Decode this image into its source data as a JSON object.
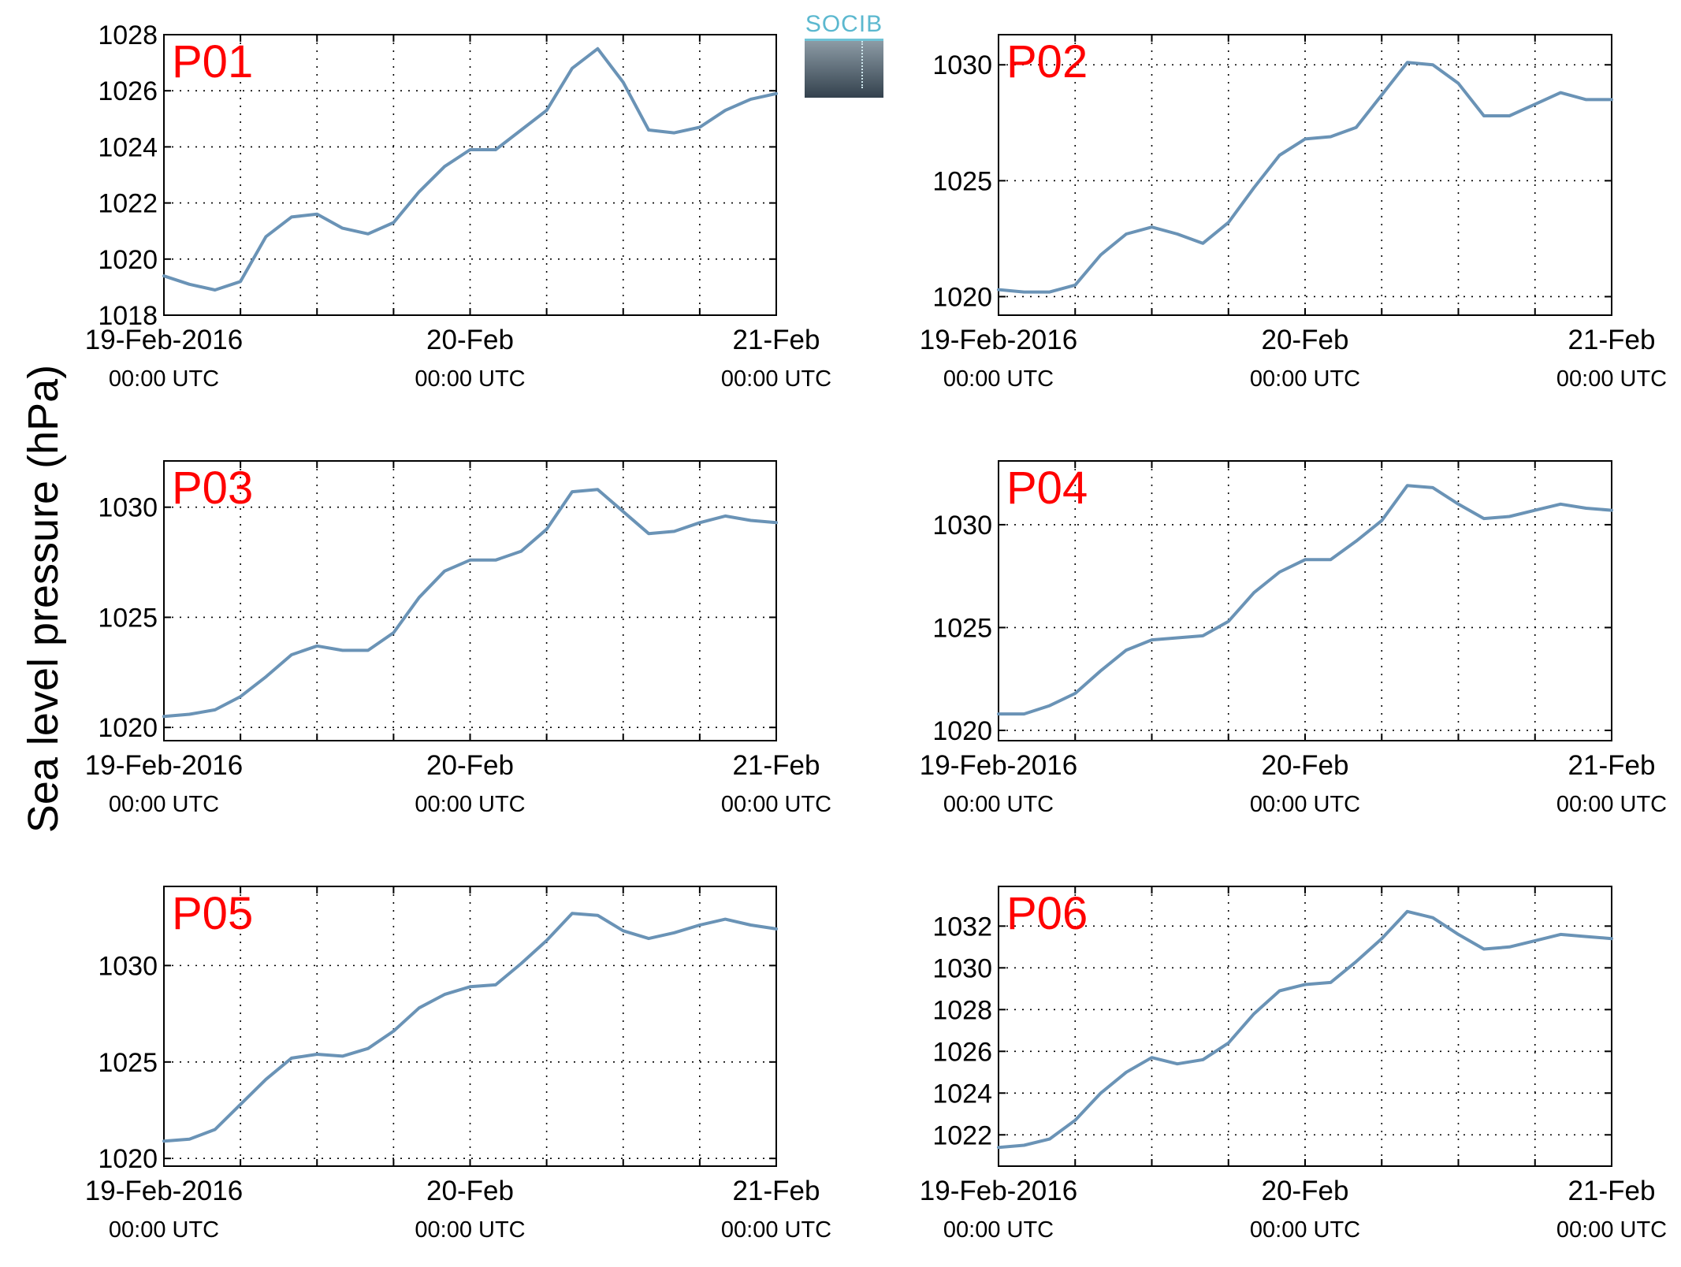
{
  "figure": {
    "ylabel": "Sea level pressure (hPa)",
    "logo_text": "SOCIB",
    "series_color": "#6a93b6",
    "panel_label_color": "#ff0000"
  },
  "chart_data": [
    {
      "type": "line",
      "panel": "P01",
      "xticks": [
        {
          "x": 0,
          "label": "19-Feb-2016",
          "sub": "00:00 UTC"
        },
        {
          "x": 24,
          "label": "20-Feb",
          "sub": "00:00 UTC"
        },
        {
          "x": 48,
          "label": "21-Feb",
          "sub": "00:00 UTC"
        }
      ],
      "xlim": [
        0,
        48
      ],
      "ylim": [
        1018,
        1028
      ],
      "yticks": [
        1018,
        1020,
        1022,
        1024,
        1026,
        1028
      ],
      "grid": true,
      "x": [
        0,
        2,
        4,
        6,
        8,
        10,
        12,
        14,
        16,
        18,
        20,
        22,
        24,
        26,
        28,
        30,
        32,
        34,
        36,
        38,
        40,
        42,
        44,
        46,
        48
      ],
      "y": [
        1019.4,
        1019.1,
        1018.9,
        1019.2,
        1020.8,
        1021.5,
        1021.6,
        1021.1,
        1020.9,
        1021.3,
        1022.4,
        1023.3,
        1023.9,
        1023.9,
        1024.6,
        1025.3,
        1026.8,
        1027.5,
        1026.3,
        1024.6,
        1024.5,
        1024.7,
        1025.3,
        1025.7,
        1025.9
      ]
    },
    {
      "type": "line",
      "panel": "P02",
      "xticks": [
        {
          "x": 0,
          "label": "19-Feb-2016",
          "sub": "00:00 UTC"
        },
        {
          "x": 24,
          "label": "20-Feb",
          "sub": "00:00 UTC"
        },
        {
          "x": 48,
          "label": "21-Feb",
          "sub": "00:00 UTC"
        }
      ],
      "xlim": [
        0,
        48
      ],
      "ylim": [
        1019.2,
        1031.3
      ],
      "yticks": [
        1020,
        1025,
        1030
      ],
      "grid": true,
      "x": [
        0,
        2,
        4,
        6,
        8,
        10,
        12,
        14,
        16,
        18,
        20,
        22,
        24,
        26,
        28,
        30,
        32,
        34,
        36,
        38,
        40,
        42,
        44,
        46,
        48
      ],
      "y": [
        1020.3,
        1020.2,
        1020.2,
        1020.5,
        1021.8,
        1022.7,
        1023.0,
        1022.7,
        1022.3,
        1023.2,
        1024.7,
        1026.1,
        1026.8,
        1026.9,
        1027.3,
        1028.7,
        1030.1,
        1030.0,
        1029.2,
        1027.8,
        1027.8,
        1028.3,
        1028.8,
        1028.5,
        1028.5
      ]
    },
    {
      "type": "line",
      "panel": "P03",
      "xticks": [
        {
          "x": 0,
          "label": "19-Feb-2016",
          "sub": "00:00 UTC"
        },
        {
          "x": 24,
          "label": "20-Feb",
          "sub": "00:00 UTC"
        },
        {
          "x": 48,
          "label": "21-Feb",
          "sub": "00:00 UTC"
        }
      ],
      "xlim": [
        0,
        48
      ],
      "ylim": [
        1019.4,
        1032.1
      ],
      "yticks": [
        1020,
        1025,
        1030
      ],
      "grid": true,
      "x": [
        0,
        2,
        4,
        6,
        8,
        10,
        12,
        14,
        16,
        18,
        20,
        22,
        24,
        26,
        28,
        30,
        32,
        34,
        36,
        38,
        40,
        42,
        44,
        46,
        48
      ],
      "y": [
        1020.5,
        1020.6,
        1020.8,
        1021.4,
        1022.3,
        1023.3,
        1023.7,
        1023.5,
        1023.5,
        1024.3,
        1025.9,
        1027.1,
        1027.6,
        1027.6,
        1028.0,
        1029.0,
        1030.7,
        1030.8,
        1029.8,
        1028.8,
        1028.9,
        1029.3,
        1029.6,
        1029.4,
        1029.3
      ]
    },
    {
      "type": "line",
      "panel": "P04",
      "xticks": [
        {
          "x": 0,
          "label": "19-Feb-2016",
          "sub": "00:00 UTC"
        },
        {
          "x": 24,
          "label": "20-Feb",
          "sub": "00:00 UTC"
        },
        {
          "x": 48,
          "label": "21-Feb",
          "sub": "00:00 UTC"
        }
      ],
      "xlim": [
        0,
        48
      ],
      "ylim": [
        1019.5,
        1033.1
      ],
      "yticks": [
        1020,
        1025,
        1030
      ],
      "grid": true,
      "x": [
        0,
        2,
        4,
        6,
        8,
        10,
        12,
        14,
        16,
        18,
        20,
        22,
        24,
        26,
        28,
        30,
        32,
        34,
        36,
        38,
        40,
        42,
        44,
        46,
        48
      ],
      "y": [
        1020.8,
        1020.8,
        1021.2,
        1021.8,
        1022.9,
        1023.9,
        1024.4,
        1024.5,
        1024.6,
        1025.3,
        1026.7,
        1027.7,
        1028.3,
        1028.3,
        1029.2,
        1030.2,
        1031.9,
        1031.8,
        1031.0,
        1030.3,
        1030.4,
        1030.7,
        1031.0,
        1030.8,
        1030.7
      ]
    },
    {
      "type": "line",
      "panel": "P05",
      "xticks": [
        {
          "x": 0,
          "label": "19-Feb-2016",
          "sub": "00:00 UTC"
        },
        {
          "x": 24,
          "label": "20-Feb",
          "sub": "00:00 UTC"
        },
        {
          "x": 48,
          "label": "21-Feb",
          "sub": "00:00 UTC"
        }
      ],
      "xlim": [
        0,
        48
      ],
      "ylim": [
        1019.6,
        1034.1
      ],
      "yticks": [
        1020,
        1025,
        1030
      ],
      "grid": true,
      "x": [
        0,
        2,
        4,
        6,
        8,
        10,
        12,
        14,
        16,
        18,
        20,
        22,
        24,
        26,
        28,
        30,
        32,
        34,
        36,
        38,
        40,
        42,
        44,
        46,
        48
      ],
      "y": [
        1020.9,
        1021.0,
        1021.5,
        1022.8,
        1024.1,
        1025.2,
        1025.4,
        1025.3,
        1025.7,
        1026.6,
        1027.8,
        1028.5,
        1028.9,
        1029.0,
        1030.1,
        1031.3,
        1032.7,
        1032.6,
        1031.8,
        1031.4,
        1031.7,
        1032.1,
        1032.4,
        1032.1,
        1031.9
      ]
    },
    {
      "type": "line",
      "panel": "P06",
      "xticks": [
        {
          "x": 0,
          "label": "19-Feb-2016",
          "sub": "00:00 UTC"
        },
        {
          "x": 24,
          "label": "20-Feb",
          "sub": "00:00 UTC"
        },
        {
          "x": 48,
          "label": "21-Feb",
          "sub": "00:00 UTC"
        }
      ],
      "xlim": [
        0,
        48
      ],
      "ylim": [
        1020.5,
        1033.9
      ],
      "yticks": [
        1022,
        1024,
        1026,
        1028,
        1030,
        1032
      ],
      "grid": true,
      "x": [
        0,
        2,
        4,
        6,
        8,
        10,
        12,
        14,
        16,
        18,
        20,
        22,
        24,
        26,
        28,
        30,
        32,
        34,
        36,
        38,
        40,
        42,
        44,
        46,
        48
      ],
      "y": [
        1021.4,
        1021.5,
        1021.8,
        1022.7,
        1024.0,
        1025.0,
        1025.7,
        1025.4,
        1025.6,
        1026.4,
        1027.8,
        1028.9,
        1029.2,
        1029.3,
        1030.3,
        1031.4,
        1032.7,
        1032.4,
        1031.6,
        1030.9,
        1031.0,
        1031.3,
        1031.6,
        1031.5,
        1031.4
      ]
    }
  ]
}
